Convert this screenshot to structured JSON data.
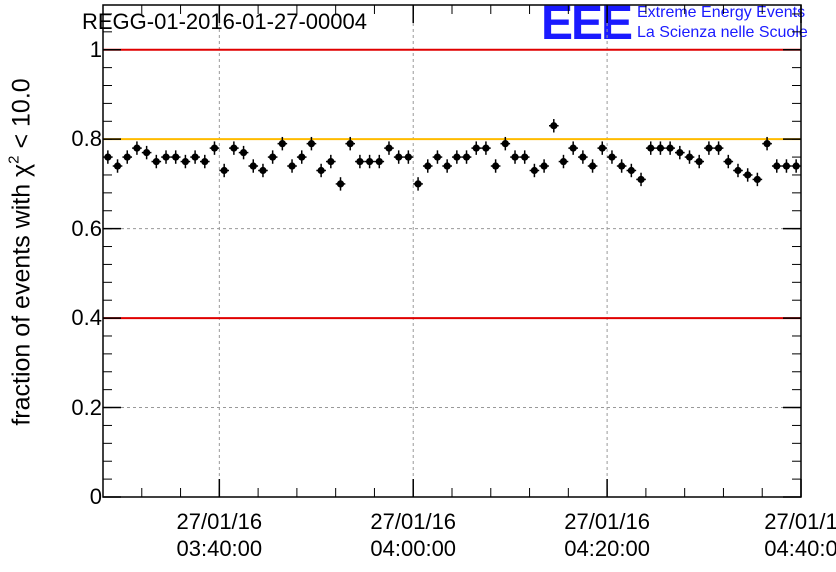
{
  "title": "REGG-01-2016-01-27-00004",
  "logo": {
    "letters": "EEE",
    "line1": "Extreme Energy Events",
    "line2": "La Scienza nelle Scuole"
  },
  "colors": {
    "limit_red": "#e00000",
    "limit_orange": "#ffbb00",
    "logo_blue": "#1a1aff",
    "grid": "#999999",
    "marker": "#000000"
  },
  "chart_data": {
    "type": "scatter",
    "title": "REGG-01-2016-01-27-00004",
    "ylabel_prefix": "fraction of events with ",
    "ylabel_chi": "χ",
    "ylabel_sup": "2",
    "ylabel_suffix": " < 10.0",
    "xlabel": "",
    "ylim": [
      0,
      1.1
    ],
    "xlim_minutes": [
      0,
      72
    ],
    "y_ticks": [
      {
        "value": 0,
        "label": "0"
      },
      {
        "value": 0.2,
        "label": "0.2"
      },
      {
        "value": 0.4,
        "label": "0.4"
      },
      {
        "value": 0.6,
        "label": "0.6"
      },
      {
        "value": 0.8,
        "label": "0.8"
      },
      {
        "value": 1.0,
        "label": "1"
      }
    ],
    "x_ticks": [
      {
        "minute": 12,
        "date": "27/01/16",
        "time": "03:40:00"
      },
      {
        "minute": 32,
        "date": "27/01/16",
        "time": "04:00:00"
      },
      {
        "minute": 52,
        "date": "27/01/16",
        "time": "04:20:00"
      },
      {
        "minute": 72,
        "date": "27/01/1",
        "time": "04:40:0"
      }
    ],
    "horizontal_lines": [
      {
        "y": 1.0,
        "color": "#e00000"
      },
      {
        "y": 0.8,
        "color": "#ffbb00"
      },
      {
        "y": 0.4,
        "color": "#e00000"
      }
    ],
    "x_start_time": "03:28:00",
    "x_minutes": [
      0.5,
      1.5,
      2.5,
      3.5,
      4.5,
      5.5,
      6.5,
      7.5,
      8.5,
      9.5,
      10.5,
      11.5,
      12.5,
      13.5,
      14.5,
      15.5,
      16.5,
      17.5,
      18.5,
      19.5,
      20.5,
      21.5,
      22.5,
      23.5,
      24.5,
      25.5,
      26.5,
      27.5,
      28.5,
      29.5,
      30.5,
      31.5,
      32.5,
      33.5,
      34.5,
      35.5,
      36.5,
      37.5,
      38.5,
      39.5,
      40.5,
      41.5,
      42.5,
      43.5,
      44.5,
      45.5,
      46.5,
      47.5,
      48.5,
      49.5,
      50.5,
      51.5,
      52.5,
      53.5,
      54.5,
      55.5,
      56.5,
      57.5,
      58.5,
      59.5,
      60.5,
      61.5,
      62.5,
      63.5,
      64.5,
      65.5,
      66.5,
      67.5,
      68.5,
      69.5,
      70.5,
      71.5
    ],
    "values": [
      0.76,
      0.74,
      0.76,
      0.78,
      0.77,
      0.75,
      0.76,
      0.76,
      0.75,
      0.76,
      0.75,
      0.78,
      0.73,
      0.78,
      0.77,
      0.74,
      0.73,
      0.76,
      0.79,
      0.74,
      0.76,
      0.79,
      0.73,
      0.75,
      0.7,
      0.79,
      0.75,
      0.75,
      0.75,
      0.78,
      0.76,
      0.76,
      0.7,
      0.74,
      0.76,
      0.74,
      0.76,
      0.76,
      0.78,
      0.78,
      0.74,
      0.79,
      0.76,
      0.76,
      0.73,
      0.74,
      0.83,
      0.75,
      0.78,
      0.76,
      0.74,
      0.78,
      0.76,
      0.74,
      0.73,
      0.71,
      0.78,
      0.78,
      0.78,
      0.77,
      0.76,
      0.75,
      0.78,
      0.78,
      0.75,
      0.73,
      0.72,
      0.71,
      0.79,
      0.74,
      0.74,
      0.74
    ],
    "errors": [
      0.015,
      0.015,
      0.015,
      0.015,
      0.015,
      0.015,
      0.015,
      0.015,
      0.015,
      0.015,
      0.015,
      0.015,
      0.015,
      0.015,
      0.015,
      0.015,
      0.015,
      0.015,
      0.015,
      0.015,
      0.015,
      0.015,
      0.015,
      0.015,
      0.015,
      0.015,
      0.015,
      0.015,
      0.015,
      0.015,
      0.015,
      0.015,
      0.015,
      0.015,
      0.015,
      0.015,
      0.015,
      0.015,
      0.015,
      0.015,
      0.015,
      0.015,
      0.015,
      0.015,
      0.015,
      0.015,
      0.015,
      0.015,
      0.015,
      0.015,
      0.015,
      0.015,
      0.015,
      0.015,
      0.015,
      0.015,
      0.015,
      0.015,
      0.015,
      0.015,
      0.015,
      0.015,
      0.015,
      0.015,
      0.015,
      0.015,
      0.015,
      0.015,
      0.015,
      0.015,
      0.015,
      0.015
    ]
  }
}
